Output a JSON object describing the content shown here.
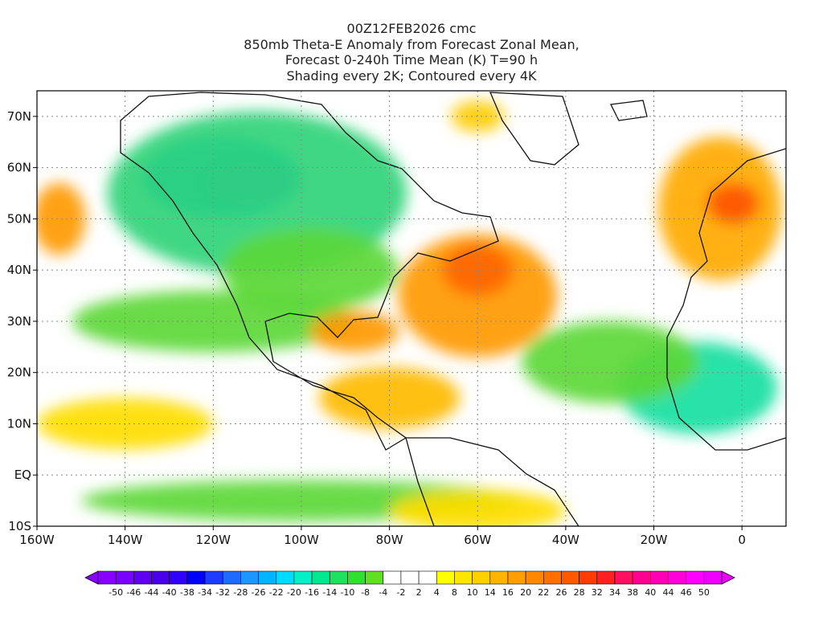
{
  "header": {
    "line1": "00Z12FEB2026 cmc",
    "line2": "850mb Theta-E Anomaly from Forecast Zonal Mean,",
    "line3": "Forecast 0-240h Time Mean (K) T=90 h",
    "line4": "Shading every 2K; Contoured every 4K"
  },
  "map": {
    "lon_range": [
      -160,
      10
    ],
    "lat_range": [
      -10,
      75
    ],
    "lon_labels": [
      "160W",
      "140W",
      "120W",
      "100W",
      "80W",
      "60W",
      "40W",
      "20W",
      "0"
    ],
    "lon_values": [
      -160,
      -140,
      -120,
      -100,
      -80,
      -60,
      -40,
      -20,
      0
    ],
    "lat_labels": [
      "70N",
      "60N",
      "50N",
      "40N",
      "30N",
      "20N",
      "10N",
      "EQ",
      "10S"
    ],
    "lat_values": [
      70,
      60,
      50,
      40,
      30,
      20,
      10,
      0,
      -10
    ],
    "grid": true,
    "anomaly_regions": [
      {
        "name": "cold-canada",
        "lon": -118,
        "lat": 58,
        "rlon": 18,
        "rlat": 8,
        "color": "#15a0ff"
      },
      {
        "name": "cold-canada-core",
        "lon": -112,
        "lat": 57,
        "rlon": 10,
        "rlat": 4,
        "color": "#1e6cff"
      },
      {
        "name": "cool-north-america",
        "lon": -110,
        "lat": 55,
        "rlon": 34,
        "rlat": 16,
        "color": "#2fd47a"
      },
      {
        "name": "cool-us",
        "lon": -98,
        "lat": 40,
        "rlon": 20,
        "rlat": 8,
        "color": "#5cd838"
      },
      {
        "name": "cool-pacific",
        "lon": -120,
        "lat": 30,
        "rlon": 32,
        "rlat": 6,
        "color": "#5cd838"
      },
      {
        "name": "warm-atlantic",
        "lon": -60,
        "lat": 35,
        "rlon": 18,
        "rlat": 12,
        "color": "#ff9900"
      },
      {
        "name": "warm-atlantic-core",
        "lon": -60,
        "lat": 40,
        "rlon": 8,
        "rlat": 5,
        "color": "#ff6600"
      },
      {
        "name": "warm-gulf",
        "lon": -88,
        "lat": 28,
        "rlon": 10,
        "rlat": 4,
        "color": "#ff9900"
      },
      {
        "name": "warm-caribbean",
        "lon": -80,
        "lat": 15,
        "rlon": 16,
        "rlat": 6,
        "color": "#ffbb00"
      },
      {
        "name": "warm-europe",
        "lon": -5,
        "lat": 52,
        "rlon": 14,
        "rlat": 14,
        "color": "#ffaa00"
      },
      {
        "name": "warm-europe-core",
        "lon": -2,
        "lat": 53,
        "rlon": 6,
        "rlat": 4,
        "color": "#ff5500"
      },
      {
        "name": "warm-greenland",
        "lon": -60,
        "lat": 70,
        "rlon": 6,
        "rlat": 3,
        "color": "#ffcc00"
      },
      {
        "name": "warm-west-pacific",
        "lon": -155,
        "lat": 50,
        "rlon": 6,
        "rlat": 7,
        "color": "#ff9900"
      },
      {
        "name": "cool-africa",
        "lon": -10,
        "lat": 17,
        "rlon": 18,
        "rlat": 9,
        "color": "#18e0a0"
      },
      {
        "name": "cool-east-atlantic",
        "lon": -30,
        "lat": 22,
        "rlon": 20,
        "rlat": 8,
        "color": "#5cd838"
      },
      {
        "name": "warm-tropical-pacific",
        "lon": -140,
        "lat": 10,
        "rlon": 20,
        "rlat": 5,
        "color": "#ffdd00"
      },
      {
        "name": "cool-south",
        "lon": -100,
        "lat": -5,
        "rlon": 50,
        "rlat": 4,
        "color": "#5cd838"
      },
      {
        "name": "warm-south-america",
        "lon": -60,
        "lat": -7,
        "rlon": 20,
        "rlat": 4,
        "color": "#ffdd00"
      }
    ]
  },
  "colorbar": {
    "labels": [
      "-50",
      "-46",
      "-44",
      "-40",
      "-38",
      "-34",
      "-32",
      "-28",
      "-26",
      "-22",
      "-20",
      "-16",
      "-14",
      "-10",
      "-8",
      "-4",
      "-2",
      "2",
      "4",
      "8",
      "10",
      "14",
      "16",
      "20",
      "22",
      "26",
      "28",
      "32",
      "34",
      "38",
      "40",
      "44",
      "46",
      "50"
    ],
    "colors": [
      "#8800ff",
      "#7a00ff",
      "#6000f0",
      "#4a00e8",
      "#3000ff",
      "#0000ff",
      "#1e3cff",
      "#1e6cff",
      "#1e96ff",
      "#00b4ff",
      "#00dcff",
      "#00f0c8",
      "#00e890",
      "#20e060",
      "#30e030",
      "#60e020",
      "#ffffff",
      "#ffffff",
      "#ffffff",
      "#ffff00",
      "#ffe600",
      "#ffd000",
      "#ffb400",
      "#ff9e00",
      "#ff8800",
      "#ff7000",
      "#ff5a00",
      "#ff3c00",
      "#ff2020",
      "#ff1060",
      "#ff0090",
      "#ff00b4",
      "#ff00d8",
      "#ff00ff",
      "#ee00ff"
    ]
  }
}
